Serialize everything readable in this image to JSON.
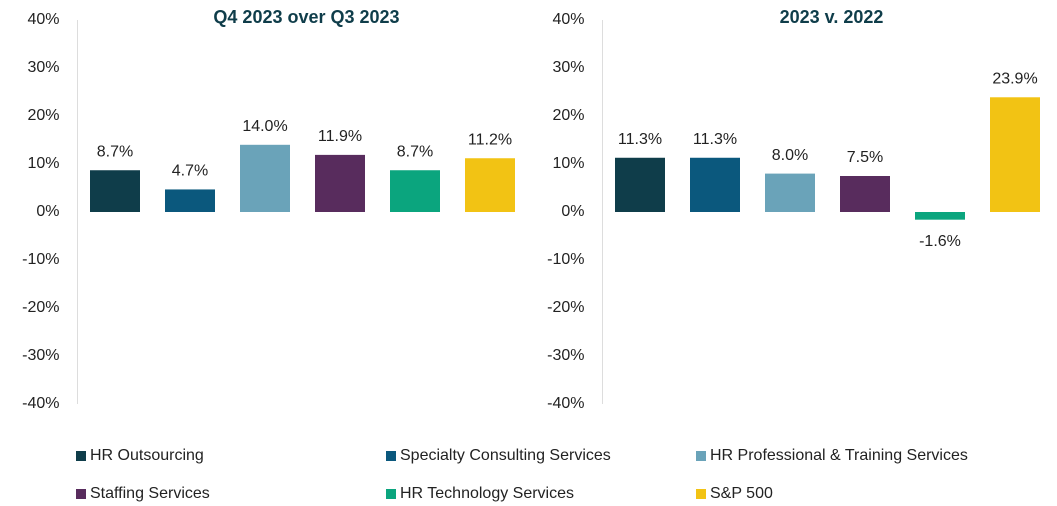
{
  "legend": [
    {
      "name": "HR Outsourcing",
      "color": "#0f3d4a"
    },
    {
      "name": "Specialty Consulting Services",
      "color": "#0b587d"
    },
    {
      "name": "HR Professional & Training Services",
      "color": "#6aa3b9"
    },
    {
      "name": "Staffing Services",
      "color": "#582c5d"
    },
    {
      "name": "HR Technology Services",
      "color": "#0ba57e"
    },
    {
      "name": "S&P 500",
      "color": "#f2c314"
    }
  ],
  "chart_data": [
    {
      "type": "bar",
      "title": "Q4 2023 over Q3 2023",
      "values": [
        8.7,
        4.7,
        14.0,
        11.9,
        8.7,
        11.2
      ],
      "value_labels": [
        "8.7%",
        "4.7%",
        "14.0%",
        "11.9%",
        "8.7%",
        "11.2%"
      ],
      "ylim": [
        -40,
        40
      ],
      "yticks": [
        {
          "value": 40,
          "label": "40%"
        },
        {
          "value": 30,
          "label": "30%"
        },
        {
          "value": 20,
          "label": "20%"
        },
        {
          "value": 10,
          "label": "10%"
        },
        {
          "value": 0,
          "label": "0%"
        },
        {
          "value": -10,
          "label": "-10%"
        },
        {
          "value": -20,
          "label": "-20%"
        },
        {
          "value": -30,
          "label": "-30%"
        },
        {
          "value": -40,
          "label": "-40%"
        }
      ]
    },
    {
      "type": "bar",
      "title": "2023 v. 2022",
      "values": [
        11.3,
        11.3,
        8.0,
        7.5,
        -1.6,
        23.9
      ],
      "value_labels": [
        "11.3%",
        "11.3%",
        "8.0%",
        "7.5%",
        "-1.6%",
        "23.9%"
      ],
      "ylim": [
        -40,
        40
      ],
      "yticks": [
        {
          "value": 40,
          "label": "40%"
        },
        {
          "value": 30,
          "label": "30%"
        },
        {
          "value": 20,
          "label": "20%"
        },
        {
          "value": 10,
          "label": "10%"
        },
        {
          "value": 0,
          "label": "0%"
        },
        {
          "value": -10,
          "label": "-10%"
        },
        {
          "value": -20,
          "label": "-20%"
        },
        {
          "value": -30,
          "label": "-30%"
        },
        {
          "value": -40,
          "label": "-40%"
        }
      ]
    }
  ]
}
